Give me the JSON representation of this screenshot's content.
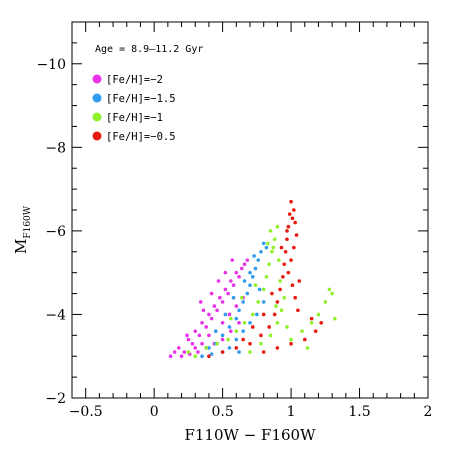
{
  "chart_data": {
    "type": "scatter",
    "annotation": "Age = 8.9–11.2 Gyr",
    "xlabel": "F110W − F160W",
    "ylabel_main": "M",
    "ylabel_sub": "F160W",
    "xlim": [
      -0.6,
      2.0
    ],
    "ylim": [
      -2.0,
      -11.0
    ],
    "y_inverted": true,
    "x_tick_labels": [
      "−0.5",
      "0",
      "0.5",
      "1",
      "1.5",
      "2"
    ],
    "x_ticks": [
      -0.5,
      0,
      0.5,
      1,
      1.5,
      2
    ],
    "y_tick_labels": [
      "−10",
      "−8",
      "−6",
      "−4",
      "−2"
    ],
    "y_ticks": [
      -10,
      -8,
      -6,
      -4,
      -2
    ],
    "legend_position": "top-left",
    "series": [
      {
        "name": "[Fe/H]=−2",
        "color": "#e833e8",
        "points": [
          [
            0.12,
            -3.0
          ],
          [
            0.18,
            -3.2
          ],
          [
            0.22,
            -3.1
          ],
          [
            0.25,
            -3.4
          ],
          [
            0.28,
            -3.3
          ],
          [
            0.3,
            -3.6
          ],
          [
            0.33,
            -3.5
          ],
          [
            0.35,
            -3.8
          ],
          [
            0.38,
            -3.7
          ],
          [
            0.4,
            -4.0
          ],
          [
            0.42,
            -3.9
          ],
          [
            0.44,
            -4.2
          ],
          [
            0.46,
            -4.1
          ],
          [
            0.48,
            -4.4
          ],
          [
            0.5,
            -4.3
          ],
          [
            0.52,
            -4.6
          ],
          [
            0.54,
            -4.5
          ],
          [
            0.56,
            -4.8
          ],
          [
            0.58,
            -4.7
          ],
          [
            0.6,
            -5.0
          ],
          [
            0.62,
            -4.9
          ],
          [
            0.64,
            -5.1
          ],
          [
            0.66,
            -5.2
          ],
          [
            0.68,
            -5.3
          ],
          [
            0.3,
            -3.2
          ],
          [
            0.35,
            -3.3
          ],
          [
            0.4,
            -3.5
          ],
          [
            0.45,
            -3.6
          ],
          [
            0.5,
            -3.8
          ],
          [
            0.55,
            -4.0
          ],
          [
            0.6,
            -4.2
          ],
          [
            0.65,
            -4.4
          ],
          [
            0.2,
            -3.0
          ],
          [
            0.26,
            -3.05
          ],
          [
            0.32,
            -3.1
          ],
          [
            0.38,
            -3.2
          ],
          [
            0.44,
            -3.3
          ],
          [
            0.5,
            -3.4
          ],
          [
            0.56,
            -3.6
          ],
          [
            0.62,
            -3.8
          ],
          [
            0.36,
            -4.1
          ],
          [
            0.42,
            -4.5
          ],
          [
            0.47,
            -4.8
          ],
          [
            0.52,
            -5.0
          ],
          [
            0.57,
            -5.3
          ],
          [
            0.15,
            -3.1
          ],
          [
            0.24,
            -3.5
          ],
          [
            0.34,
            -4.3
          ]
        ]
      },
      {
        "name": "[Fe/H]=−1.5",
        "color": "#2f9cf0",
        "points": [
          [
            0.35,
            -3.0
          ],
          [
            0.4,
            -3.2
          ],
          [
            0.45,
            -3.3
          ],
          [
            0.5,
            -3.5
          ],
          [
            0.55,
            -3.7
          ],
          [
            0.6,
            -3.9
          ],
          [
            0.62,
            -4.1
          ],
          [
            0.65,
            -4.3
          ],
          [
            0.68,
            -4.5
          ],
          [
            0.7,
            -4.7
          ],
          [
            0.72,
            -4.9
          ],
          [
            0.74,
            -5.1
          ],
          [
            0.76,
            -5.3
          ],
          [
            0.78,
            -5.5
          ],
          [
            0.8,
            -5.7
          ],
          [
            0.82,
            -5.6
          ],
          [
            0.5,
            -3.1
          ],
          [
            0.55,
            -3.2
          ],
          [
            0.6,
            -3.4
          ],
          [
            0.65,
            -3.6
          ],
          [
            0.7,
            -3.8
          ],
          [
            0.75,
            -4.0
          ],
          [
            0.8,
            -4.3
          ],
          [
            0.7,
            -5.0
          ],
          [
            0.45,
            -3.6
          ],
          [
            0.52,
            -4.0
          ],
          [
            0.58,
            -4.4
          ],
          [
            0.66,
            -4.8
          ],
          [
            0.73,
            -5.4
          ],
          [
            0.77,
            -4.6
          ],
          [
            0.42,
            -3.05
          ],
          [
            0.62,
            -3.1
          ]
        ]
      },
      {
        "name": "[Fe/H]=−1",
        "color": "#8ff02b",
        "points": [
          [
            0.3,
            -3.0
          ],
          [
            0.38,
            -3.2
          ],
          [
            0.46,
            -3.3
          ],
          [
            0.54,
            -3.4
          ],
          [
            0.6,
            -3.6
          ],
          [
            0.66,
            -3.8
          ],
          [
            0.72,
            -4.0
          ],
          [
            0.76,
            -4.3
          ],
          [
            0.8,
            -4.6
          ],
          [
            0.82,
            -4.9
          ],
          [
            0.84,
            -5.2
          ],
          [
            0.86,
            -5.5
          ],
          [
            0.88,
            -5.8
          ],
          [
            0.9,
            -6.1
          ],
          [
            0.85,
            -6.0
          ],
          [
            0.87,
            -5.6
          ],
          [
            0.7,
            -3.1
          ],
          [
            0.78,
            -3.3
          ],
          [
            0.85,
            -3.5
          ],
          [
            0.9,
            -3.8
          ],
          [
            0.93,
            -4.1
          ],
          [
            0.95,
            -4.4
          ],
          [
            0.92,
            -4.8
          ],
          [
            0.91,
            -5.3
          ],
          [
            1.0,
            -3.4
          ],
          [
            1.08,
            -3.6
          ],
          [
            1.15,
            -3.8
          ],
          [
            1.2,
            -4.0
          ],
          [
            1.25,
            -4.3
          ],
          [
            1.3,
            -4.5
          ],
          [
            1.32,
            -3.9
          ],
          [
            1.28,
            -4.6
          ],
          [
            0.56,
            -3.9
          ],
          [
            0.64,
            -4.4
          ],
          [
            0.74,
            -4.7
          ],
          [
            0.83,
            -5.7
          ],
          [
            0.89,
            -4.2
          ],
          [
            0.97,
            -3.7
          ],
          [
            1.12,
            -3.2
          ],
          [
            0.25,
            -3.1
          ]
        ]
      },
      {
        "name": "[Fe/H]=−0.5",
        "color": "#e8190f",
        "points": [
          [
            0.4,
            -3.0
          ],
          [
            0.5,
            -3.1
          ],
          [
            0.6,
            -3.2
          ],
          [
            0.7,
            -3.3
          ],
          [
            0.78,
            -3.5
          ],
          [
            0.84,
            -3.7
          ],
          [
            0.88,
            -4.0
          ],
          [
            0.9,
            -4.3
          ],
          [
            0.92,
            -4.6
          ],
          [
            0.94,
            -4.9
          ],
          [
            0.95,
            -5.2
          ],
          [
            0.96,
            -5.5
          ],
          [
            0.97,
            -5.8
          ],
          [
            0.98,
            -6.1
          ],
          [
            0.99,
            -6.4
          ],
          [
            1.0,
            -6.7
          ],
          [
            1.02,
            -6.5
          ],
          [
            1.03,
            -6.2
          ],
          [
            1.04,
            -5.9
          ],
          [
            1.02,
            -5.6
          ],
          [
            1.0,
            -5.3
          ],
          [
            0.98,
            -5.0
          ],
          [
            1.01,
            -4.7
          ],
          [
            1.03,
            -4.4
          ],
          [
            0.8,
            -3.1
          ],
          [
            0.9,
            -3.2
          ],
          [
            1.0,
            -3.3
          ],
          [
            1.1,
            -3.4
          ],
          [
            1.18,
            -3.6
          ],
          [
            1.22,
            -3.8
          ],
          [
            1.15,
            -3.9
          ],
          [
            1.05,
            -4.1
          ],
          [
            0.65,
            -3.4
          ],
          [
            0.72,
            -3.7
          ],
          [
            0.8,
            -4.0
          ],
          [
            0.86,
            -4.5
          ],
          [
            0.93,
            -5.6
          ],
          [
            0.97,
            -6.0
          ],
          [
            1.01,
            -6.3
          ],
          [
            1.06,
            -4.8
          ]
        ]
      }
    ]
  }
}
